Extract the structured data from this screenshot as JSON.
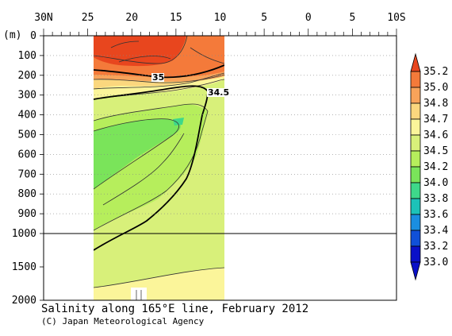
{
  "caption": "Salinity along 165°E line, February 2012",
  "credit": "(C) Japan Meteorological Agency",
  "y_unit_label": "(m)",
  "lat_ticks": [
    "30N",
    "25",
    "20",
    "15",
    "10",
    "5",
    "0",
    "5",
    "10S"
  ],
  "depth_ticks": [
    "0",
    "100",
    "200",
    "300",
    "400",
    "500",
    "600",
    "700",
    "800",
    "900",
    "1000",
    "1500",
    "2000"
  ],
  "contour_labels": [
    "35",
    "34.5"
  ],
  "colorbar": {
    "levels": [
      "35.2",
      "35.0",
      "34.8",
      "34.7",
      "34.6",
      "34.5",
      "34.2",
      "34.0",
      "33.8",
      "33.6",
      "33.4",
      "33.2",
      "33.0"
    ],
    "colors": [
      "#e8461e",
      "#f47a3a",
      "#f8a35a",
      "#fbd77e",
      "#fbf59a",
      "#d8f07a",
      "#b6ee5c",
      "#7ae45a",
      "#3ed88a",
      "#1cc2b8",
      "#1a8ee0",
      "#1050d8",
      "#0a10c8"
    ]
  },
  "chart_data": {
    "type": "heatmap",
    "title": "Salinity along 165°E line, February 2012",
    "x_axis": {
      "ticks": [
        "30N",
        "25",
        "20",
        "15",
        "10",
        "5",
        "0",
        "5",
        "10S"
      ],
      "range_deg_lat": [
        30,
        -10
      ]
    },
    "y_axis": {
      "label": "(m)",
      "ticks_m": [
        0,
        100,
        200,
        300,
        400,
        500,
        600,
        700,
        800,
        900,
        1000,
        1500,
        2000
      ],
      "range_m": [
        0,
        2000
      ],
      "scale": "linear 0-1000 m, compressed 1000-2000 m"
    },
    "data_extent_lat": [
      25,
      10
    ],
    "contour_levels": [
      33.0,
      33.2,
      33.4,
      33.6,
      33.8,
      34.0,
      34.2,
      34.5,
      34.6,
      34.7,
      34.8,
      35.0,
      35.2
    ],
    "labeled_contours": [
      35.0,
      34.5
    ],
    "features": [
      {
        "region": "surface, 25N-10N, 0-200 m",
        "salinity_range": [
          35.0,
          35.2
        ]
      },
      {
        "region": "core 24N-15N, 450-800 m",
        "salinity_range": [
          34.0,
          34.2
        ]
      },
      {
        "region": "1000-2000 m",
        "salinity_range": [
          34.5,
          34.7
        ]
      }
    ]
  }
}
